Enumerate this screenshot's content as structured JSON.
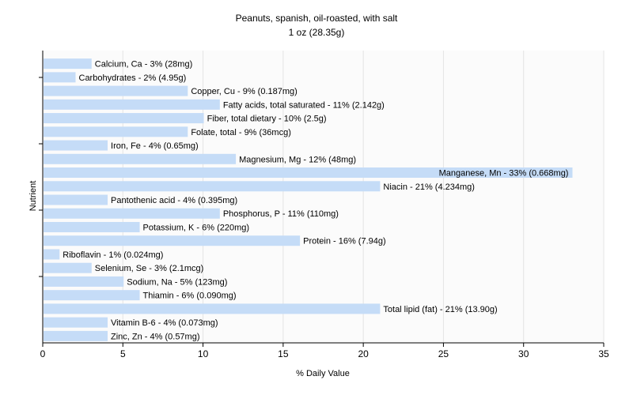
{
  "chart_data": {
    "type": "bar",
    "orientation": "horizontal",
    "title": "Peanuts, spanish, oil-roasted, with salt",
    "subtitle": "1 oz (28.35g)",
    "xlabel": "% Daily Value",
    "ylabel": "Nutrient",
    "xlim": [
      0,
      35
    ],
    "xticks": [
      0,
      5,
      10,
      15,
      20,
      25,
      30,
      35
    ],
    "grid": true,
    "bar_color": "#c5dcf7",
    "categories": [
      "Calcium, Ca",
      "Carbohydrates",
      "Copper, Cu",
      "Fatty acids, total saturated",
      "Fiber, total dietary",
      "Folate, total",
      "Iron, Fe",
      "Magnesium, Mg",
      "Manganese, Mn",
      "Niacin",
      "Pantothenic acid",
      "Phosphorus, P",
      "Potassium, K",
      "Protein",
      "Riboflavin",
      "Selenium, Se",
      "Sodium, Na",
      "Thiamin",
      "Total lipid (fat)",
      "Vitamin B-6",
      "Zinc, Zn"
    ],
    "values": [
      3,
      2,
      9,
      11,
      10,
      9,
      4,
      12,
      33,
      21,
      4,
      11,
      6,
      16,
      1,
      3,
      5,
      6,
      21,
      4,
      4
    ],
    "labels": [
      "Calcium, Ca - 3% (28mg)",
      "Carbohydrates - 2% (4.95g)",
      "Copper, Cu - 9% (0.187mg)",
      "Fatty acids, total saturated - 11% (2.142g)",
      "Fiber, total dietary - 10% (2.5g)",
      "Folate, total - 9% (36mcg)",
      "Iron, Fe - 4% (0.65mg)",
      "Magnesium, Mg - 12% (48mg)",
      "Manganese, Mn - 33% (0.668mg)",
      "Niacin - 21% (4.234mg)",
      "Pantothenic acid - 4% (0.395mg)",
      "Phosphorus, P - 11% (110mg)",
      "Potassium, K - 6% (220mg)",
      "Protein - 16% (7.94g)",
      "Riboflavin - 1% (0.024mg)",
      "Selenium, Se - 3% (2.1mcg)",
      "Sodium, Na - 5% (123mg)",
      "Thiamin - 6% (0.090mg)",
      "Total lipid (fat) - 21% (13.90g)",
      "Vitamin B-6 - 4% (0.073mg)",
      "Zinc, Zn - 4% (0.57mg)"
    ]
  }
}
